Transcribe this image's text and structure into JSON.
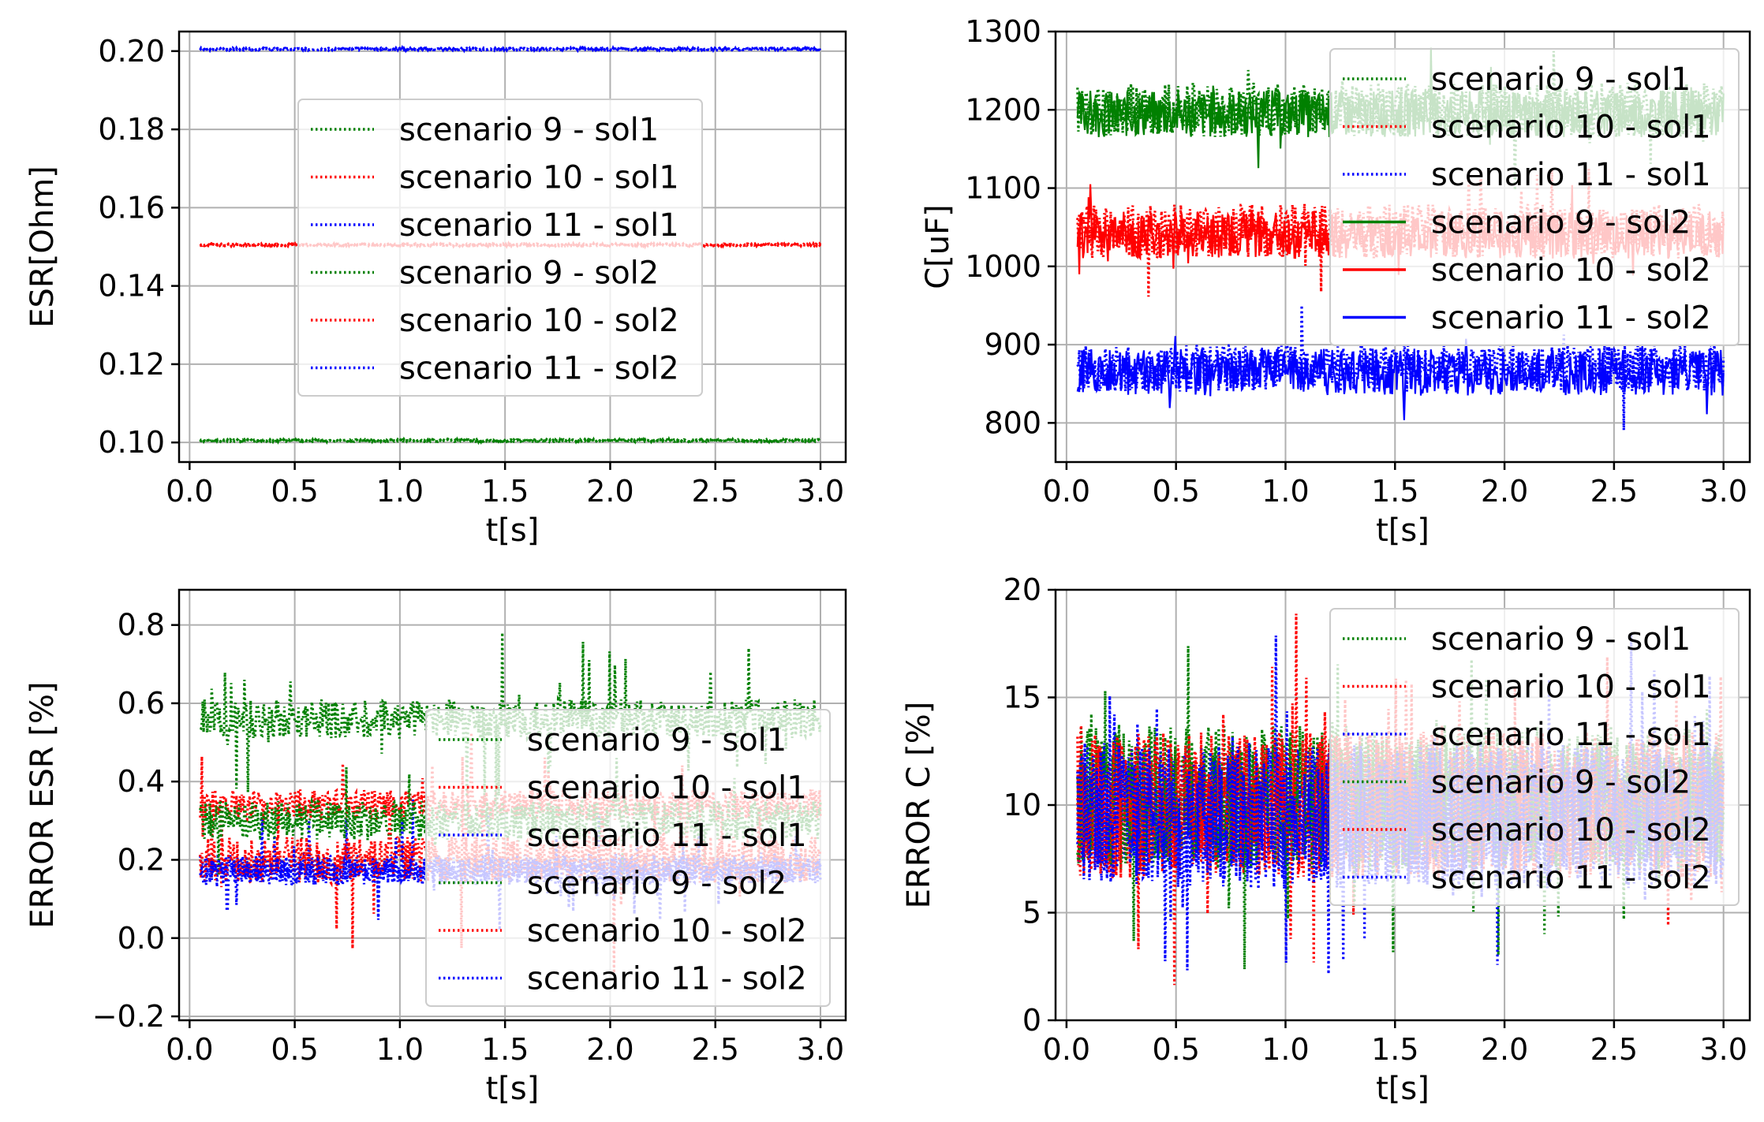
{
  "chart_data": [
    {
      "id": "esr",
      "type": "line",
      "xlabel": "t[s]",
      "ylabel": "ESR[Ohm]",
      "xlim": [
        -0.05,
        3.12
      ],
      "ylim": [
        0.095,
        0.205
      ],
      "xticks": [
        0.0,
        0.5,
        1.0,
        1.5,
        2.0,
        2.5,
        3.0
      ],
      "xtick_labels": [
        "0.0",
        "0.5",
        "1.0",
        "1.5",
        "2.0",
        "2.5",
        "3.0"
      ],
      "yticks": [
        0.1,
        0.12,
        0.14,
        0.16,
        0.18,
        0.2
      ],
      "ytick_labels": [
        "0.10",
        "0.12",
        "0.14",
        "0.16",
        "0.18",
        "0.20"
      ],
      "grid": true,
      "legend_position": "center",
      "series": [
        {
          "name": "scenario 9 - sol1",
          "color": "#008000",
          "style": "dotted",
          "x_range": [
            0.05,
            3.0
          ],
          "base": 0.1005,
          "noise": 0.0003,
          "spike_rate": 0,
          "spike_amp": 0,
          "seed": 1
        },
        {
          "name": "scenario 10 - sol1",
          "color": "#ff0000",
          "style": "dotted",
          "x_range": [
            0.05,
            3.0
          ],
          "base": 0.1505,
          "noise": 0.0003,
          "spike_rate": 0,
          "spike_amp": 0,
          "seed": 2
        },
        {
          "name": "scenario 11 - sol1",
          "color": "#0000ff",
          "style": "dotted",
          "x_range": [
            0.05,
            3.0
          ],
          "base": 0.2005,
          "noise": 0.0003,
          "spike_rate": 0,
          "spike_amp": 0,
          "seed": 3
        },
        {
          "name": "scenario 9 - sol2",
          "color": "#008000",
          "style": "dotted",
          "x_range": [
            0.05,
            3.0
          ],
          "base": 0.1005,
          "noise": 0.0003,
          "spike_rate": 0,
          "spike_amp": 0,
          "seed": 4
        },
        {
          "name": "scenario 10 - sol2",
          "color": "#ff0000",
          "style": "dotted",
          "x_range": [
            0.05,
            3.0
          ],
          "base": 0.1505,
          "noise": 0.0003,
          "spike_rate": 0,
          "spike_amp": 0,
          "seed": 5
        },
        {
          "name": "scenario 11 - sol2",
          "color": "#0000ff",
          "style": "dotted",
          "x_range": [
            0.05,
            3.0
          ],
          "base": 0.2005,
          "noise": 0.0003,
          "spike_rate": 0,
          "spike_amp": 0,
          "seed": 6
        }
      ]
    },
    {
      "id": "cap",
      "type": "line",
      "xlabel": "t[s]",
      "ylabel": "C[uF]",
      "xlim": [
        -0.05,
        3.12
      ],
      "ylim": [
        750,
        1300
      ],
      "xticks": [
        0.0,
        0.5,
        1.0,
        1.5,
        2.0,
        2.5,
        3.0
      ],
      "xtick_labels": [
        "0.0",
        "0.5",
        "1.0",
        "1.5",
        "2.0",
        "2.5",
        "3.0"
      ],
      "yticks": [
        800,
        900,
        1000,
        1100,
        1200,
        1300
      ],
      "ytick_labels": [
        "800",
        "900",
        "1000",
        "1100",
        "1200",
        "1300"
      ],
      "grid": true,
      "legend_position": "upper right",
      "series": [
        {
          "name": "scenario 9 - sol1",
          "color": "#008000",
          "style": "dotted",
          "x_range": [
            0.05,
            3.0
          ],
          "base": 1200,
          "noise": 35,
          "spike_rate": 0.02,
          "spike_amp": 70,
          "seed": 11
        },
        {
          "name": "scenario 10 - sol1",
          "color": "#ff0000",
          "style": "dotted",
          "x_range": [
            0.05,
            3.0
          ],
          "base": 1045,
          "noise": 35,
          "spike_rate": 0.02,
          "spike_amp": 70,
          "seed": 12
        },
        {
          "name": "scenario 11 - sol1",
          "color": "#0000ff",
          "style": "dotted",
          "x_range": [
            0.05,
            3.0
          ],
          "base": 870,
          "noise": 30,
          "spike_rate": 0.02,
          "spike_amp": 70,
          "seed": 13
        },
        {
          "name": "scenario 9 - sol2",
          "color": "#008000",
          "style": "solid",
          "x_range": [
            0.05,
            3.0
          ],
          "base": 1195,
          "noise": 30,
          "spike_rate": 0.02,
          "spike_amp": 70,
          "seed": 14
        },
        {
          "name": "scenario 10 - sol2",
          "color": "#ff0000",
          "style": "solid",
          "x_range": [
            0.05,
            3.0
          ],
          "base": 1040,
          "noise": 30,
          "spike_rate": 0.02,
          "spike_amp": 70,
          "seed": 15
        },
        {
          "name": "scenario 11 - sol2",
          "color": "#0000ff",
          "style": "solid",
          "x_range": [
            0.05,
            3.0
          ],
          "base": 865,
          "noise": 30,
          "spike_rate": 0.02,
          "spike_amp": 70,
          "seed": 16
        }
      ]
    },
    {
      "id": "err_esr",
      "type": "line",
      "xlabel": "t[s]",
      "ylabel": "ERROR ESR [%]",
      "xlim": [
        -0.05,
        3.12
      ],
      "ylim": [
        -0.21,
        0.89
      ],
      "xticks": [
        0.0,
        0.5,
        1.0,
        1.5,
        2.0,
        2.5,
        3.0
      ],
      "xtick_labels": [
        "0.0",
        "0.5",
        "1.0",
        "1.5",
        "2.0",
        "2.5",
        "3.0"
      ],
      "yticks": [
        -0.2,
        0.0,
        0.2,
        0.4,
        0.6,
        0.8
      ],
      "ytick_labels": [
        "−0.2",
        "0.0",
        "0.2",
        "0.4",
        "0.6",
        "0.8"
      ],
      "grid": true,
      "legend_position": "lower right",
      "series": [
        {
          "name": "scenario 9 - sol1",
          "color": "#008000",
          "style": "dotted",
          "x_range": [
            0.05,
            3.0
          ],
          "base": 0.56,
          "noise": 0.05,
          "spike_rate": 0.05,
          "spike_amp": 0.18,
          "seed": 21
        },
        {
          "name": "scenario 10 - sol1",
          "color": "#ff0000",
          "style": "dotted",
          "x_range": [
            0.05,
            3.0
          ],
          "base": 0.34,
          "noise": 0.04,
          "spike_rate": 0.04,
          "spike_amp": 0.2,
          "seed": 22
        },
        {
          "name": "scenario 11 - sol1",
          "color": "#0000ff",
          "style": "dotted",
          "x_range": [
            0.05,
            3.0
          ],
          "base": 0.18,
          "noise": 0.035,
          "spike_rate": 0.03,
          "spike_amp": 0.15,
          "seed": 23
        },
        {
          "name": "scenario 9 - sol2",
          "color": "#008000",
          "style": "dotted",
          "x_range": [
            0.05,
            3.0
          ],
          "base": 0.3,
          "noise": 0.05,
          "spike_rate": 0.03,
          "spike_amp": 0.2,
          "seed": 24
        },
        {
          "name": "scenario 10 - sol2",
          "color": "#ff0000",
          "style": "dotted",
          "x_range": [
            0.05,
            3.0
          ],
          "base": 0.2,
          "noise": 0.06,
          "spike_rate": 0.03,
          "spike_amp": 0.25,
          "seed": 25
        },
        {
          "name": "scenario 11 - sol2",
          "color": "#0000ff",
          "style": "dotted",
          "x_range": [
            0.05,
            3.0
          ],
          "base": 0.17,
          "noise": 0.035,
          "spike_rate": 0.03,
          "spike_amp": 0.15,
          "seed": 26
        }
      ]
    },
    {
      "id": "err_c",
      "type": "line",
      "xlabel": "t[s]",
      "ylabel": "ERROR C [%]",
      "xlim": [
        -0.05,
        3.12
      ],
      "ylim": [
        0,
        20
      ],
      "xticks": [
        0.0,
        0.5,
        1.0,
        1.5,
        2.0,
        2.5,
        3.0
      ],
      "xtick_labels": [
        "0.0",
        "0.5",
        "1.0",
        "1.5",
        "2.0",
        "2.5",
        "3.0"
      ],
      "yticks": [
        0,
        5,
        10,
        15,
        20
      ],
      "ytick_labels": [
        "0",
        "5",
        "10",
        "15",
        "20"
      ],
      "grid": true,
      "legend_position": "upper right",
      "series": [
        {
          "name": "scenario 9 - sol1",
          "color": "#008000",
          "style": "dotted",
          "x_range": [
            0.05,
            3.0
          ],
          "base": 10.5,
          "noise": 3.2,
          "spike_rate": 0.04,
          "spike_amp": 6,
          "seed": 31
        },
        {
          "name": "scenario 10 - sol1",
          "color": "#ff0000",
          "style": "dotted",
          "x_range": [
            0.05,
            3.0
          ],
          "base": 10,
          "noise": 3.4,
          "spike_rate": 0.04,
          "spike_amp": 6,
          "seed": 32
        },
        {
          "name": "scenario 11 - sol1",
          "color": "#0000ff",
          "style": "dotted",
          "x_range": [
            0.05,
            3.0
          ],
          "base": 9.5,
          "noise": 3.2,
          "spike_rate": 0.04,
          "spike_amp": 6,
          "seed": 33
        },
        {
          "name": "scenario 9 - sol2",
          "color": "#008000",
          "style": "dotted",
          "x_range": [
            0.05,
            3.0
          ],
          "base": 10,
          "noise": 3,
          "spike_rate": 0.04,
          "spike_amp": 6,
          "seed": 34
        },
        {
          "name": "scenario 10 - sol2",
          "color": "#ff0000",
          "style": "dotted",
          "x_range": [
            0.05,
            3.0
          ],
          "base": 10,
          "noise": 3.4,
          "spike_rate": 0.04,
          "spike_amp": 6,
          "seed": 35
        },
        {
          "name": "scenario 11 - sol2",
          "color": "#0000ff",
          "style": "dotted",
          "x_range": [
            0.05,
            3.0
          ],
          "base": 9.5,
          "noise": 3.4,
          "spike_rate": 0.04,
          "spike_amp": 6,
          "seed": 36
        }
      ]
    }
  ]
}
